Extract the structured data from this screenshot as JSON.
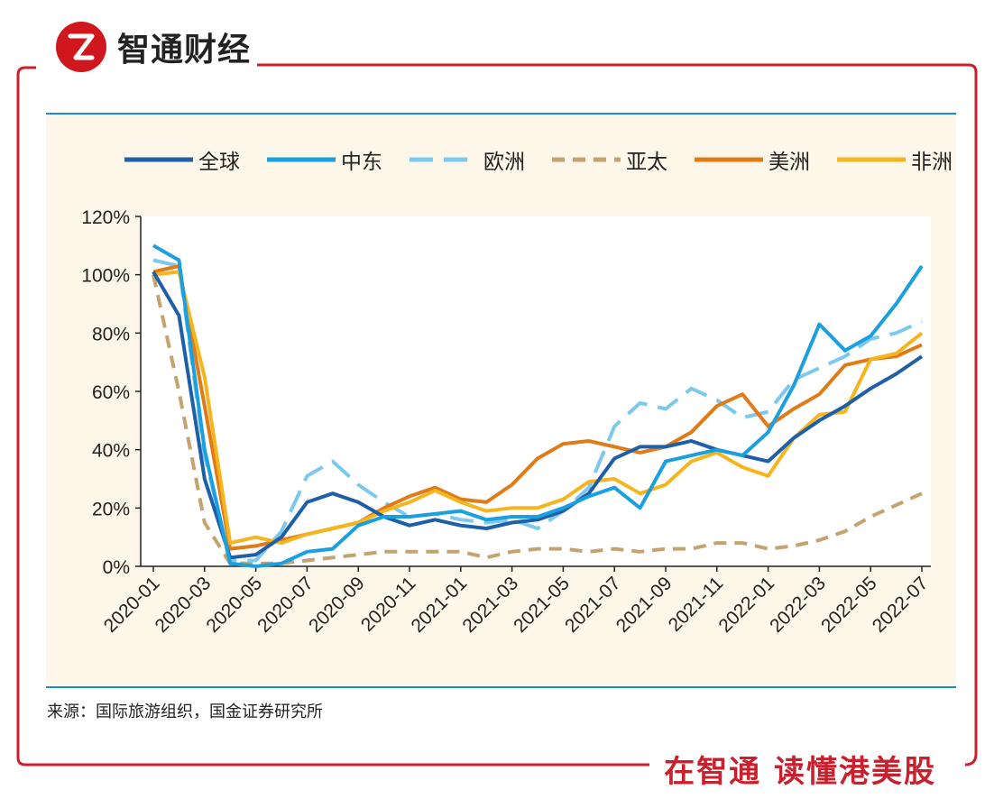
{
  "brand": {
    "logo_letter": "Z",
    "name": "智通财经"
  },
  "source": "来源：国际旅游组织，国金证券研究所",
  "slogan": "在智通 读懂港美股",
  "colors": {
    "frame": "#c8202c",
    "rule": "#1a8fd0",
    "panel": "#fcf7e8"
  },
  "chart_data": {
    "type": "line",
    "title": "",
    "xlabel": "",
    "ylabel": "",
    "ylim": [
      0,
      120
    ],
    "yticks": [
      "0%",
      "20%",
      "40%",
      "60%",
      "80%",
      "100%",
      "120%"
    ],
    "x": [
      "2020-01",
      "2020-02",
      "2020-03",
      "2020-04",
      "2020-05",
      "2020-06",
      "2020-07",
      "2020-08",
      "2020-09",
      "2020-10",
      "2020-11",
      "2020-12",
      "2021-01",
      "2021-02",
      "2021-03",
      "2021-04",
      "2021-05",
      "2021-06",
      "2021-07",
      "2021-08",
      "2021-09",
      "2021-10",
      "2021-11",
      "2021-12",
      "2022-01",
      "2022-02",
      "2022-03",
      "2022-04",
      "2022-05",
      "2022-06",
      "2022-07"
    ],
    "xtick_labels": [
      "2020-01",
      "2020-03",
      "2020-05",
      "2020-07",
      "2020-09",
      "2020-11",
      "2021-01",
      "2021-03",
      "2021-05",
      "2021-07",
      "2021-09",
      "2021-11",
      "2022-01",
      "2022-03",
      "2022-05",
      "2022-07"
    ],
    "series": [
      {
        "name": "全球",
        "color": "#1f5fa8",
        "dash": "solid",
        "values": [
          101,
          86,
          30,
          3,
          4,
          10,
          22,
          25,
          22,
          17,
          14,
          16,
          14,
          13,
          15,
          16,
          19,
          25,
          37,
          41,
          41,
          43,
          40,
          38,
          36,
          44,
          50,
          55,
          61,
          66,
          72
        ]
      },
      {
        "name": "中东",
        "color": "#1aa0e0",
        "dash": "solid",
        "values": [
          110,
          105,
          40,
          1,
          0,
          1,
          5,
          6,
          14,
          17,
          17,
          18,
          19,
          16,
          17,
          17,
          20,
          24,
          27,
          20,
          36,
          38,
          40,
          38,
          46,
          62,
          83,
          74,
          79,
          90,
          103
        ]
      },
      {
        "name": "欧洲",
        "color": "#7cc8ef",
        "dash": "dash",
        "values": [
          105,
          103,
          38,
          2,
          2,
          12,
          31,
          36,
          28,
          22,
          17,
          18,
          16,
          15,
          16,
          13,
          19,
          27,
          48,
          56,
          54,
          61,
          57,
          51,
          53,
          64,
          68,
          72,
          78,
          80,
          84
        ]
      },
      {
        "name": "亚太",
        "color": "#c5a370",
        "dash": "dot",
        "values": [
          100,
          60,
          15,
          1,
          1,
          1,
          2,
          3,
          4,
          5,
          5,
          5,
          5,
          3,
          5,
          6,
          6,
          5,
          6,
          5,
          6,
          6,
          8,
          8,
          6,
          7,
          9,
          12,
          17,
          21,
          25
        ]
      },
      {
        "name": "美洲",
        "color": "#e07b18",
        "dash": "solid",
        "values": [
          101,
          103,
          55,
          6,
          7,
          9,
          11,
          13,
          15,
          20,
          24,
          27,
          23,
          22,
          28,
          37,
          42,
          43,
          41,
          39,
          41,
          46,
          55,
          59,
          48,
          54,
          59,
          69,
          71,
          72,
          76
        ]
      },
      {
        "name": "非洲",
        "color": "#f5b51f",
        "dash": "solid",
        "values": [
          100,
          101,
          65,
          8,
          10,
          8,
          11,
          13,
          15,
          19,
          22,
          26,
          22,
          19,
          20,
          20,
          23,
          29,
          30,
          25,
          28,
          36,
          39,
          34,
          31,
          44,
          52,
          53,
          71,
          73,
          80
        ]
      }
    ]
  }
}
